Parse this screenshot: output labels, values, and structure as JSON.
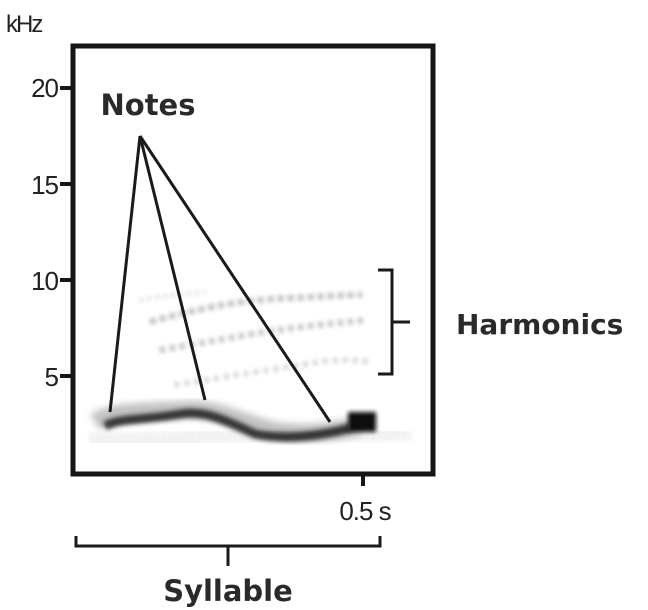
{
  "y_axis": {
    "unit": "kHz",
    "ticks": [
      {
        "value": 20,
        "label": "20"
      },
      {
        "value": 15,
        "label": "15"
      },
      {
        "value": 10,
        "label": "10"
      },
      {
        "value": 5,
        "label": "5"
      }
    ]
  },
  "x_axis": {
    "tick_label": "0.5 s"
  },
  "annotations": {
    "notes": "Notes",
    "harmonics": "Harmonics",
    "syllable": "Syllable"
  },
  "colors": {
    "ink": "#1a1a1a",
    "frame": "#161616",
    "spectrogram": "#1c1c1c"
  }
}
